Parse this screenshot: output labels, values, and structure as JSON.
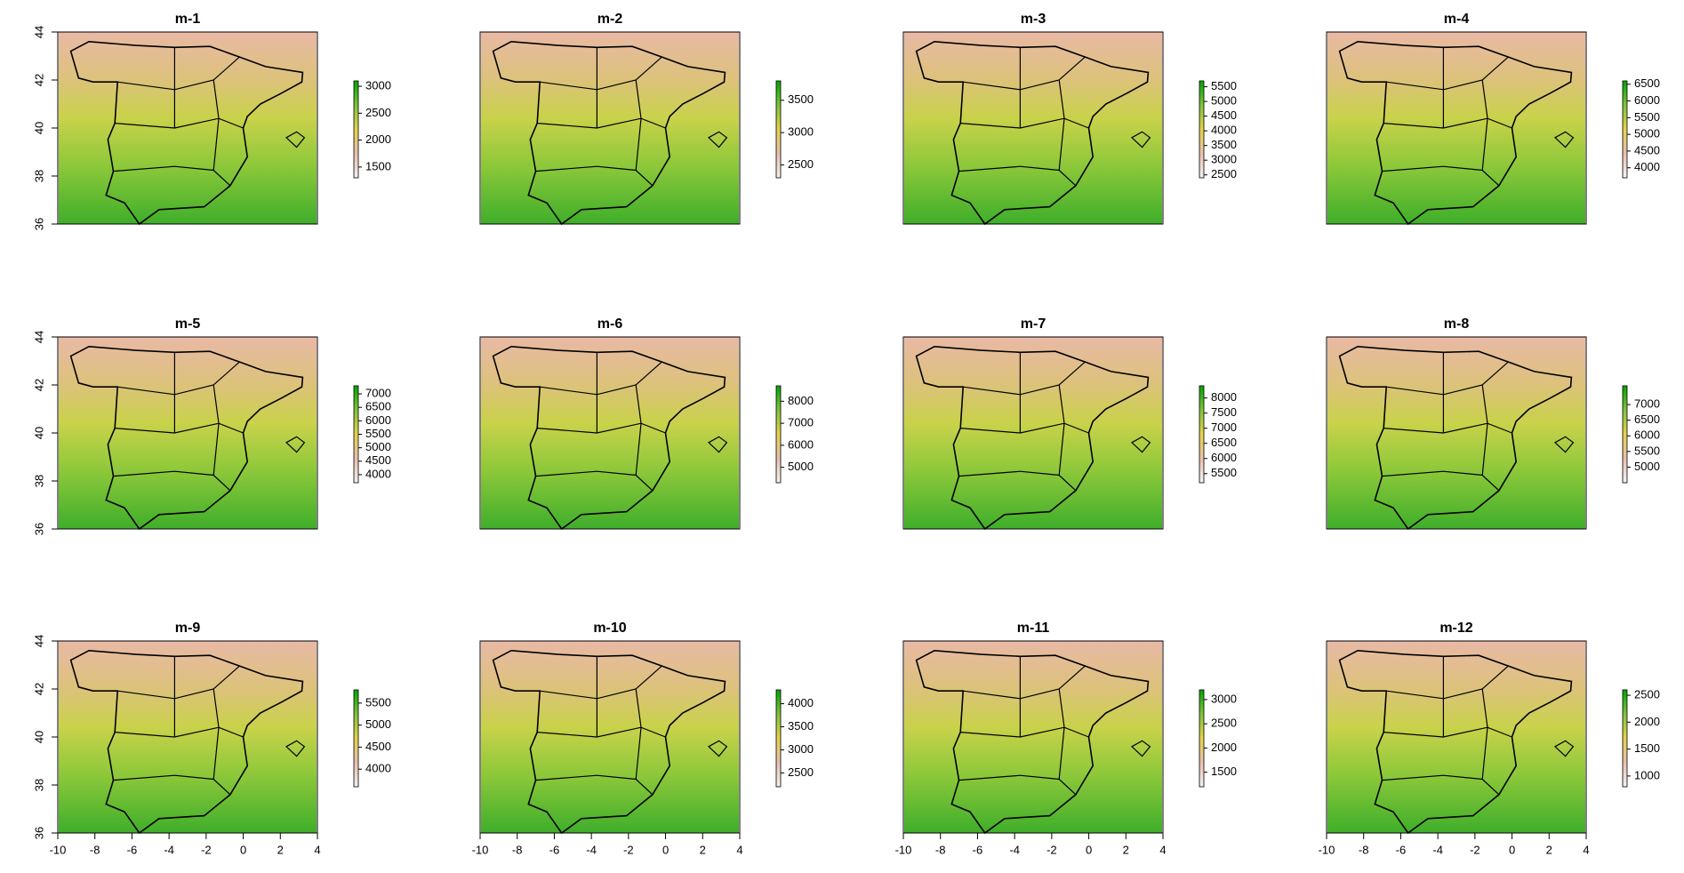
{
  "chart_data": {
    "type": "raster",
    "xlim": [
      -10,
      4
    ],
    "ylim": [
      36,
      44
    ],
    "xticks": [
      -10,
      -8,
      -6,
      -4,
      -2,
      0,
      2,
      4
    ],
    "yticks": [
      36,
      38,
      40,
      42,
      44
    ],
    "panels": [
      {
        "title": "m-1",
        "colorbar_lim": [
          1300,
          3100
        ],
        "colorbar_ticks": [
          1500,
          2000,
          2500,
          3000
        ]
      },
      {
        "title": "m-2",
        "colorbar_lim": [
          2300,
          3800
        ],
        "colorbar_ticks": [
          2500,
          3000,
          3500
        ]
      },
      {
        "title": "m-3",
        "colorbar_lim": [
          2400,
          5700
        ],
        "colorbar_ticks": [
          2500,
          3000,
          3500,
          4000,
          4500,
          5000,
          5500
        ]
      },
      {
        "title": "m-4",
        "colorbar_lim": [
          3700,
          6600
        ],
        "colorbar_ticks": [
          4000,
          4500,
          5000,
          5500,
          6000,
          6500
        ]
      },
      {
        "title": "m-5",
        "colorbar_lim": [
          3700,
          7300
        ],
        "colorbar_ticks": [
          4000,
          4500,
          5000,
          5500,
          6000,
          6500,
          7000
        ]
      },
      {
        "title": "m-6",
        "colorbar_lim": [
          4300,
          8700
        ],
        "colorbar_ticks": [
          5000,
          6000,
          7000,
          8000
        ]
      },
      {
        "title": "m-7",
        "colorbar_lim": [
          5200,
          8400
        ],
        "colorbar_ticks": [
          5500,
          6000,
          6500,
          7000,
          7500,
          8000
        ]
      },
      {
        "title": "m-8",
        "colorbar_lim": [
          4500,
          7600
        ],
        "colorbar_ticks": [
          5000,
          5500,
          6000,
          6500,
          7000
        ]
      },
      {
        "title": "m-9",
        "colorbar_lim": [
          3600,
          5800
        ],
        "colorbar_ticks": [
          4000,
          4500,
          5000,
          5500
        ]
      },
      {
        "title": "m-10",
        "colorbar_lim": [
          2200,
          4300
        ],
        "colorbar_ticks": [
          2500,
          3000,
          3500,
          4000
        ]
      },
      {
        "title": "m-11",
        "colorbar_lim": [
          1200,
          3200
        ],
        "colorbar_ticks": [
          1500,
          2000,
          2500,
          3000
        ]
      },
      {
        "title": "m-12",
        "colorbar_lim": [
          800,
          2600
        ],
        "colorbar_ticks": [
          1000,
          1500,
          2000,
          2500
        ]
      }
    ]
  }
}
